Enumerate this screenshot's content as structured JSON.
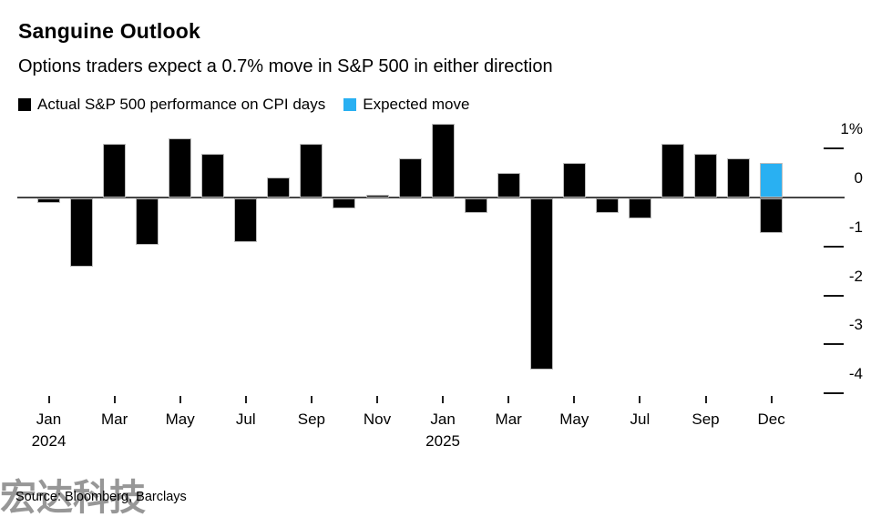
{
  "header": {
    "title": "Sanguine Outlook",
    "subtitle": "Options traders expect a 0.7% move in S&P 500 in either direction"
  },
  "legend": {
    "items": [
      {
        "label": "Actual S&P 500 performance on CPI days",
        "color": "#000000"
      },
      {
        "label": "Expected move",
        "color": "#29b0f2"
      }
    ]
  },
  "footer": {
    "source": "Source: Bloomberg, Barclays",
    "watermark": "宏达科技"
  },
  "chart_data": {
    "type": "bar",
    "title": "Sanguine Outlook",
    "subtitle": "Options traders expect a 0.7% move in S&P 500 in either direction",
    "unit": "percent",
    "ylim": [
      -4.45,
      1.5
    ],
    "grid": false,
    "legend_position": "top",
    "yticks": [
      {
        "value": 1,
        "label": "1%"
      },
      {
        "value": 0,
        "label": "0"
      },
      {
        "value": -1,
        "label": "-1"
      },
      {
        "value": -2,
        "label": "-2"
      },
      {
        "value": -3,
        "label": "-3"
      },
      {
        "value": -4,
        "label": "-4"
      }
    ],
    "slots": [
      "Jan 2024",
      "Feb 2024",
      "Mar 2024",
      "Apr 2024",
      "May 2024",
      "Jun 2024",
      "Jul 2024",
      "Aug 2024",
      "Sep 2024",
      "Oct 2024",
      "Nov 2024",
      "Dec 2024",
      "Jan 2025",
      "Feb 2025",
      "Mar 2025",
      "Apr 2025",
      "May 2025",
      "Jun 2025",
      "Jul 2025",
      "Aug 2025",
      "Sep 2025",
      "Oct 2025",
      "Dec 2025"
    ],
    "series": [
      {
        "name": "Actual S&P 500 performance on CPI days",
        "color": "#000000",
        "values": [
          -0.1,
          -1.4,
          1.1,
          -0.95,
          1.2,
          0.9,
          -0.9,
          0.4,
          1.1,
          -0.2,
          0.05,
          0.8,
          1.5,
          -0.3,
          0.5,
          -3.5,
          0.7,
          -0.3,
          -0.4,
          1.1,
          0.9,
          0.8,
          -0.7
        ]
      },
      {
        "name": "Expected move",
        "color": "#29b0f2",
        "values": [
          null,
          null,
          null,
          null,
          null,
          null,
          null,
          null,
          null,
          null,
          null,
          null,
          null,
          null,
          null,
          null,
          null,
          null,
          null,
          null,
          null,
          null,
          0.7
        ]
      }
    ],
    "xticks": [
      {
        "slot": 0,
        "label": "Jan",
        "year": "2024"
      },
      {
        "slot": 2,
        "label": "Mar"
      },
      {
        "slot": 4,
        "label": "May"
      },
      {
        "slot": 6,
        "label": "Jul"
      },
      {
        "slot": 8,
        "label": "Sep"
      },
      {
        "slot": 10,
        "label": "Nov"
      },
      {
        "slot": 12,
        "label": "Jan",
        "year": "2025"
      },
      {
        "slot": 14,
        "label": "Mar"
      },
      {
        "slot": 16,
        "label": "May"
      },
      {
        "slot": 18,
        "label": "Jul"
      },
      {
        "slot": 20,
        "label": "Sep"
      },
      {
        "slot": 22,
        "label": "Dec"
      }
    ]
  }
}
